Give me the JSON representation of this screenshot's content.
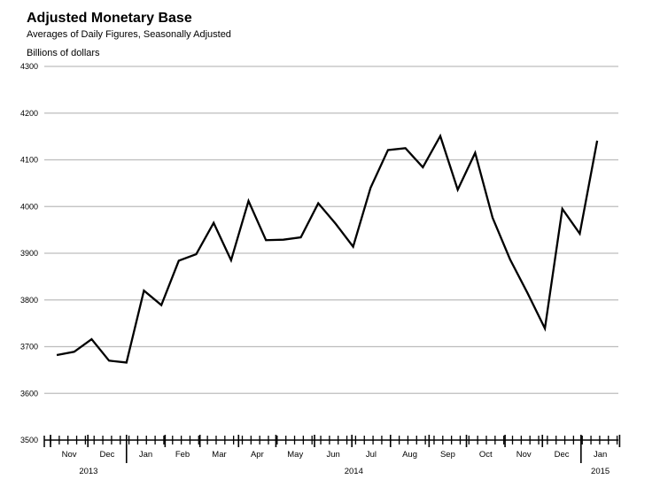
{
  "chart_data": {
    "type": "line",
    "title": "Adjusted Monetary Base",
    "subtitle": "Averages of Daily Figures, Seasonally Adjusted",
    "ylabel": "Billions of dollars",
    "xlabel": "",
    "ylim": [
      3500,
      4300
    ],
    "yticks": [
      "3500",
      "3600",
      "3700",
      "3800",
      "3900",
      "4000",
      "4100",
      "4200",
      "4300"
    ],
    "grid": true,
    "months": [
      "Nov",
      "Dec",
      "Jan",
      "Feb",
      "Mar",
      "Apr",
      "May",
      "Jun",
      "Jul",
      "Aug",
      "Sep",
      "Oct",
      "Nov",
      "Dec",
      "Jan"
    ],
    "years": [
      "2013",
      "2014",
      "2015"
    ],
    "x": [
      "2013-11-06",
      "2013-11-20",
      "2013-12-04",
      "2013-12-18",
      "2014-01-01",
      "2014-01-15",
      "2014-01-29",
      "2014-02-12",
      "2014-02-26",
      "2014-03-12",
      "2014-03-26",
      "2014-04-09",
      "2014-04-23",
      "2014-05-07",
      "2014-05-21",
      "2014-06-04",
      "2014-06-18",
      "2014-07-02",
      "2014-07-16",
      "2014-07-30",
      "2014-08-13",
      "2014-08-27",
      "2014-09-10",
      "2014-09-24",
      "2014-10-08",
      "2014-10-22",
      "2014-11-05",
      "2014-11-19",
      "2014-12-03",
      "2014-12-17",
      "2014-12-31",
      "2015-01-14"
    ],
    "series": [
      {
        "values": [
          3682,
          3689,
          3716,
          3670,
          3666,
          3820,
          3789,
          3884,
          3898,
          3965,
          3885,
          4012,
          3928,
          3929,
          3934,
          4007,
          3963,
          3914,
          4040,
          4121,
          4125,
          4084,
          4151,
          4036,
          4115,
          3976,
          3887,
          3815,
          3739,
          3995,
          3942,
          4141
        ]
      }
    ]
  }
}
